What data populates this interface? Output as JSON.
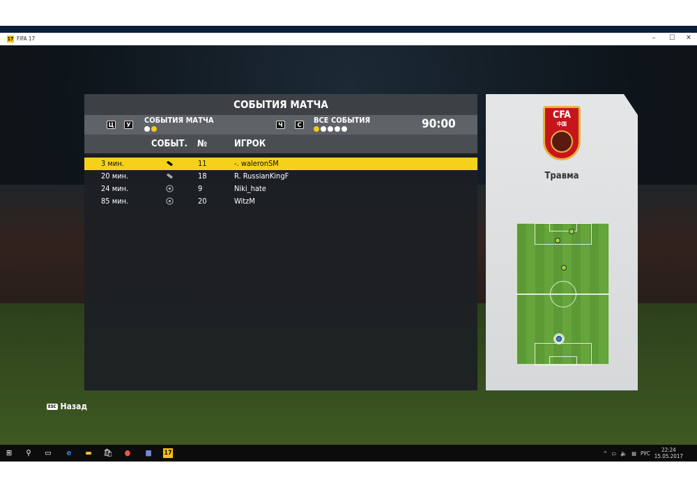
{
  "window": {
    "title": "FIFA 17",
    "app_icon": "17",
    "controls": [
      "–",
      "☐",
      "✕"
    ]
  },
  "panel": {
    "title": "СОБЫТИЯ МАТЧА",
    "filter_left": {
      "keys": [
        "Ц",
        "У"
      ],
      "label": "СОБЫТИЯ МАТЧА",
      "dots": [
        false,
        true
      ]
    },
    "filter_right": {
      "keys": [
        "Ч",
        "С"
      ],
      "label": "ВСЕ СОБЫТИЯ",
      "dots": [
        true,
        false,
        false,
        false,
        false
      ]
    },
    "clock": "90:00",
    "columns": {
      "event": "СОБЫТ.",
      "number": "№",
      "player": "ИГРОК"
    },
    "rows": [
      {
        "time": "3 мин.",
        "event": "injury-icon",
        "number": "11",
        "player": "-. waleronSM",
        "selected": true
      },
      {
        "time": "20 мин.",
        "event": "injury-icon",
        "number": "18",
        "player": "R. RussianKingF",
        "selected": false
      },
      {
        "time": "24 мин.",
        "event": "goal-ball-icon",
        "number": "9",
        "player": "Niki_hate",
        "selected": false
      },
      {
        "time": "85 мин.",
        "event": "goal-ball-icon",
        "number": "20",
        "player": "WitzM",
        "selected": false
      }
    ]
  },
  "detail": {
    "crest_text": "CFA",
    "crest_sub": "中国",
    "event_label": "Травма"
  },
  "footer": {
    "back_key": "ESC",
    "back_label": "Назад"
  },
  "taskbar": {
    "lang": "РУС",
    "time": "22:24",
    "date": "15.05.2017",
    "active_app": "17"
  },
  "colors": {
    "accent": "#f6d11b",
    "panel": "#1c1f24"
  }
}
